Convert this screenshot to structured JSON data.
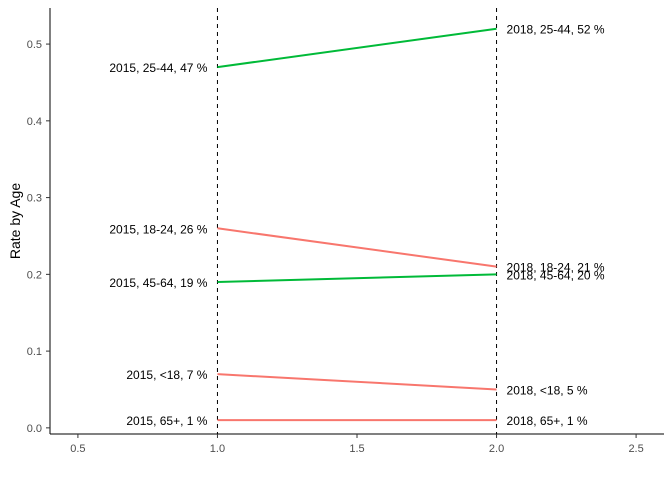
{
  "chart_data": {
    "type": "line",
    "title": "",
    "xlabel": "",
    "ylabel": "Rate by Age",
    "xlim": [
      0.4,
      2.6
    ],
    "ylim": [
      -0.008,
      0.547
    ],
    "x_ticks": [
      0.5,
      1.0,
      1.5,
      2.0,
      2.5
    ],
    "x_tick_labels": [
      "0.5",
      "1.0",
      "1.5",
      "2.0",
      "2.5"
    ],
    "y_ticks": [
      0.0,
      0.1,
      0.2,
      0.3,
      0.4,
      0.5
    ],
    "y_tick_labels": [
      "0.0",
      "0.1",
      "0.2",
      "0.3",
      "0.4",
      "0.5"
    ],
    "grid": false,
    "vlines": [
      1,
      2
    ],
    "vline_style": "dashed",
    "x": [
      1,
      2
    ],
    "series": [
      {
        "values": [
          0.47,
          0.52
        ],
        "color": "#00ba38",
        "left_label": "2015, 25-44, 47 %",
        "right_label": "2018, 25-44, 52 %"
      },
      {
        "values": [
          0.26,
          0.21
        ],
        "color": "#f8766d",
        "left_label": "2015, 18-24, 26 %",
        "right_label": "2018, 18-24, 21 %"
      },
      {
        "values": [
          0.19,
          0.2
        ],
        "color": "#00ba38",
        "left_label": "2015, 45-64, 19 %",
        "right_label": "2018, 45-64, 20 %"
      },
      {
        "values": [
          0.07,
          0.05
        ],
        "color": "#f8766d",
        "left_label": "2015, <18, 7 %",
        "right_label": "2018, <18, 5 %"
      },
      {
        "values": [
          0.01,
          0.01
        ],
        "color": "#f8766d",
        "left_label": "2015, 65+, 1 %",
        "right_label": "2018, 65+, 1 %"
      }
    ]
  }
}
